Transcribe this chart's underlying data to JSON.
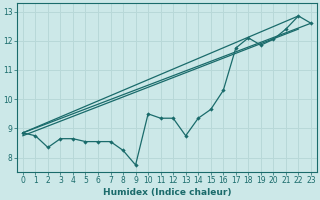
{
  "xlabel": "Humidex (Indice chaleur)",
  "ylabel": "",
  "background_color": "#cce8e8",
  "grid_color": "#b8d8d8",
  "line_color": "#1a6b6b",
  "xlim": [
    -0.5,
    23.5
  ],
  "ylim": [
    7.5,
    13.3
  ],
  "xticks": [
    0,
    1,
    2,
    3,
    4,
    5,
    6,
    7,
    8,
    9,
    10,
    11,
    12,
    13,
    14,
    15,
    16,
    17,
    18,
    19,
    20,
    21,
    22,
    23
  ],
  "yticks": [
    8,
    9,
    10,
    11,
    12,
    13
  ],
  "data_x": [
    0,
    1,
    2,
    3,
    4,
    5,
    6,
    7,
    8,
    9,
    10,
    11,
    12,
    13,
    14,
    15,
    16,
    17,
    18,
    19,
    20,
    21,
    22,
    23
  ],
  "data_y": [
    8.85,
    8.75,
    8.35,
    8.65,
    8.65,
    8.55,
    8.55,
    8.55,
    8.25,
    7.75,
    9.5,
    9.35,
    9.35,
    8.75,
    9.35,
    9.65,
    10.3,
    11.75,
    12.1,
    11.85,
    12.05,
    12.4,
    12.85,
    12.6
  ],
  "trend1_x": [
    0,
    22
  ],
  "trend1_y": [
    8.85,
    12.85
  ],
  "trend2_x": [
    0,
    23
  ],
  "trend2_y": [
    8.85,
    12.6
  ],
  "trend3_x": [
    0,
    22
  ],
  "trend3_y": [
    8.75,
    12.4
  ]
}
